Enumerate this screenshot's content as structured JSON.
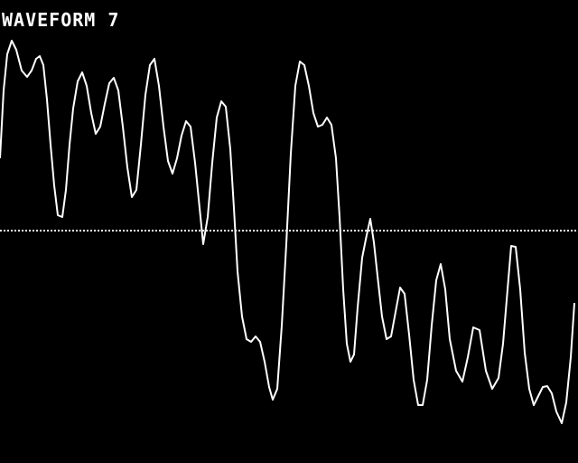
{
  "screen": {
    "title": "WAVEFORM 7"
  },
  "colors": {
    "background": "#000000",
    "trace": "#ffffff",
    "baseline": "#ffffff"
  }
}
